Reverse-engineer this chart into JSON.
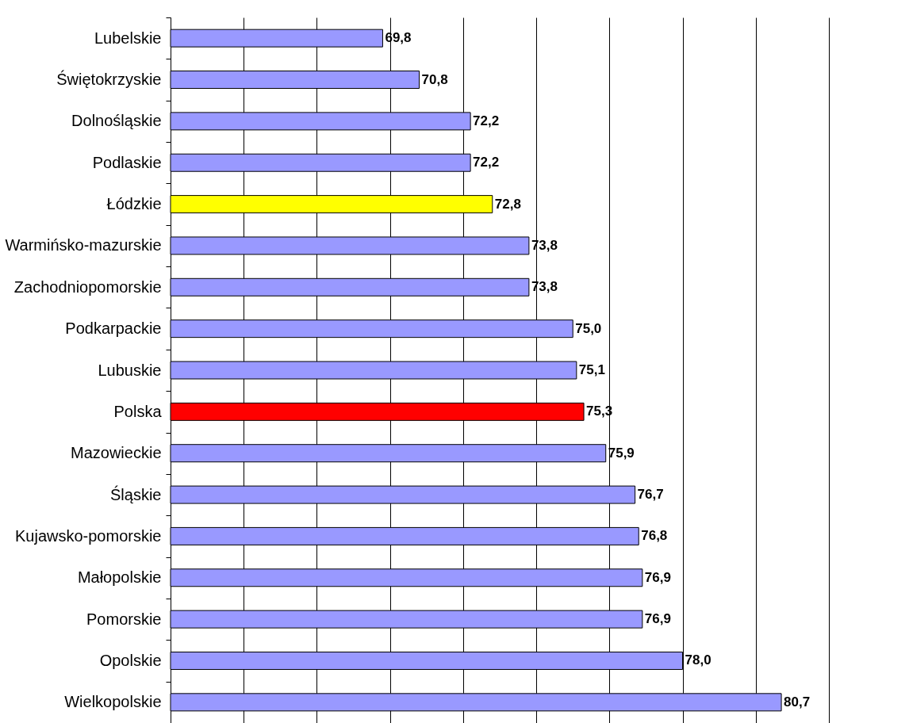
{
  "chart_data": {
    "type": "bar",
    "orientation": "horizontal",
    "categories": [
      "Lubelskie",
      "Świętokrzyskie",
      "Dolnośląskie",
      "Podlaskie",
      "Łódzkie",
      "Warmińsko-mazurskie",
      "Zachodniopomorskie",
      "Podkarpackie",
      "Lubuskie",
      "Polska",
      "Mazowieckie",
      "Śląskie",
      "Kujawsko-pomorskie",
      "Małopolskie",
      "Pomorskie",
      "Opolskie",
      "Wielkopolskie"
    ],
    "values": [
      69.8,
      70.8,
      72.2,
      72.2,
      72.8,
      73.8,
      73.8,
      75.0,
      75.1,
      75.3,
      75.9,
      76.7,
      76.8,
      76.9,
      76.9,
      78.0,
      80.7
    ],
    "value_labels": [
      "69,8",
      "70,8",
      "72,2",
      "72,2",
      "72,8",
      "73,8",
      "73,8",
      "75,0",
      "75,1",
      "75,3",
      "75,9",
      "76,7",
      "76,8",
      "76,9",
      "76,9",
      "78,0",
      "80,7"
    ],
    "colors": [
      "#9999ff",
      "#9999ff",
      "#9999ff",
      "#9999ff",
      "#ffff00",
      "#9999ff",
      "#9999ff",
      "#9999ff",
      "#9999ff",
      "#ff0000",
      "#9999ff",
      "#9999ff",
      "#9999ff",
      "#9999ff",
      "#9999ff",
      "#9999ff",
      "#9999ff"
    ],
    "xlim": [
      64,
      82
    ],
    "xticks": [
      {
        "value": 64,
        "label": null
      },
      {
        "value": 66,
        "label": null
      },
      {
        "value": 68,
        "label": null
      },
      {
        "value": 70,
        "label": null
      },
      {
        "value": 72,
        "label": null
      },
      {
        "value": 74,
        "label": null
      },
      {
        "value": 76,
        "label": null
      },
      {
        "value": 78,
        "label": null
      },
      {
        "value": 80,
        "label": null
      },
      {
        "value": 82,
        "label": null
      }
    ],
    "grid": "x",
    "tick_labels": "y"
  }
}
